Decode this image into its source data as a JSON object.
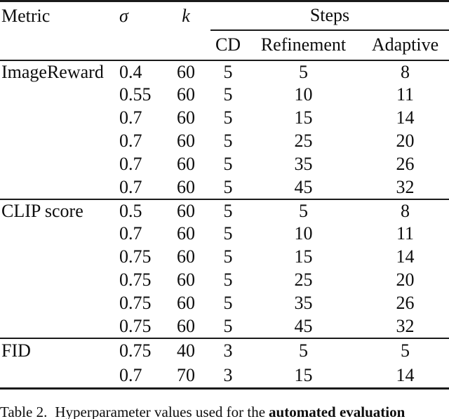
{
  "colors": {
    "text": "#0d0d0d",
    "rule": "#1a1a1a",
    "background": "#ffffff"
  },
  "table": {
    "header": {
      "metric": "Metric",
      "sigma": "σ",
      "k": "k",
      "steps": "Steps",
      "sub": {
        "cd": "CD",
        "refinement": "Refinement",
        "adaptive": "Adaptive"
      }
    },
    "groups": [
      {
        "metric": "ImageReward",
        "rows": [
          [
            "0.4",
            "60",
            "5",
            "5",
            "8"
          ],
          [
            "0.55",
            "60",
            "5",
            "10",
            "11"
          ],
          [
            "0.7",
            "60",
            "5",
            "15",
            "14"
          ],
          [
            "0.7",
            "60",
            "5",
            "25",
            "20"
          ],
          [
            "0.7",
            "60",
            "5",
            "35",
            "26"
          ],
          [
            "0.7",
            "60",
            "5",
            "45",
            "32"
          ]
        ]
      },
      {
        "metric": "CLIP score",
        "rows": [
          [
            "0.5",
            "60",
            "5",
            "5",
            "8"
          ],
          [
            "0.7",
            "60",
            "5",
            "10",
            "11"
          ],
          [
            "0.75",
            "60",
            "5",
            "15",
            "14"
          ],
          [
            "0.75",
            "60",
            "5",
            "25",
            "20"
          ],
          [
            "0.75",
            "60",
            "5",
            "35",
            "26"
          ],
          [
            "0.75",
            "60",
            "5",
            "45",
            "32"
          ]
        ]
      },
      {
        "metric": "FID",
        "rows": [
          [
            "0.75",
            "40",
            "3",
            "5",
            "5"
          ],
          [
            "0.7",
            "70",
            "3",
            "15",
            "14"
          ]
        ]
      }
    ]
  },
  "caption": {
    "label": "Table 2.",
    "text": "Hyperparameter values used for the",
    "bold": "automated evaluation"
  }
}
